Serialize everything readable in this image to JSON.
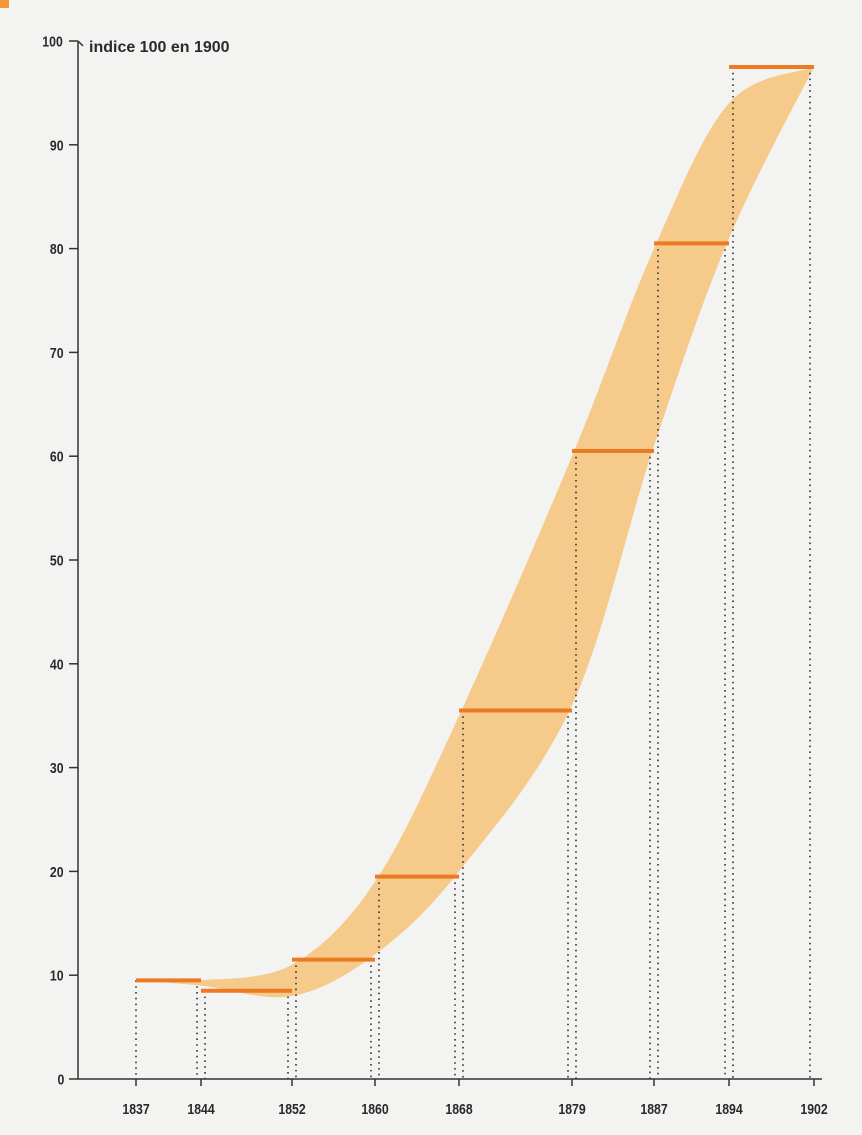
{
  "chart_data": {
    "type": "area",
    "title": "",
    "unit_label": "indice 100 en 1900",
    "ylim": [
      0,
      100
    ],
    "y_ticks": [
      0,
      10,
      20,
      30,
      40,
      50,
      60,
      70,
      80,
      90,
      100
    ],
    "x_tick_labels": [
      "1837",
      "1844",
      "1852",
      "1860",
      "1868",
      "1879",
      "1887",
      "1894",
      "1902"
    ],
    "periods": [
      {
        "from": "1837",
        "to": "1844",
        "value": 9.5
      },
      {
        "from": "1844",
        "to": "1852",
        "value": 8.5
      },
      {
        "from": "1852",
        "to": "1860",
        "value": 11.5
      },
      {
        "from": "1860",
        "to": "1868",
        "value": 19.5
      },
      {
        "from": "1868",
        "to": "1879",
        "value": 35.5
      },
      {
        "from": "1879",
        "to": "1887",
        "value": 60.5
      },
      {
        "from": "1887",
        "to": "1894",
        "value": 80.5
      },
      {
        "from": "1894",
        "to": "1902",
        "value": 97.5
      }
    ],
    "band": {
      "upper": [
        {
          "x": "1844",
          "y": 9.5
        },
        {
          "x": "1852",
          "y": 11.0
        },
        {
          "x": "1860",
          "y": 19.0
        },
        {
          "x": "1868",
          "y": 35.0
        },
        {
          "x": "1879",
          "y": 60.0
        },
        {
          "x": "1887",
          "y": 80.0
        },
        {
          "x": "1894",
          "y": 94.0
        },
        {
          "x": "1902",
          "y": 97.5
        }
      ],
      "lower": [
        {
          "x": "1837",
          "y": 9.5
        },
        {
          "x": "1844",
          "y": 9.0
        },
        {
          "x": "1852",
          "y": 8.0
        },
        {
          "x": "1860",
          "y": 12.0
        },
        {
          "x": "1868",
          "y": 20.0
        },
        {
          "x": "1879",
          "y": 36.0
        },
        {
          "x": "1887",
          "y": 61.0
        },
        {
          "x": "1894",
          "y": 81.0
        },
        {
          "x": "1902",
          "y": 97.5
        }
      ]
    },
    "colors": {
      "band": "#f6c57e",
      "level": "#ec7a22",
      "axis": "#333333"
    },
    "grid": false,
    "legend": "none"
  }
}
